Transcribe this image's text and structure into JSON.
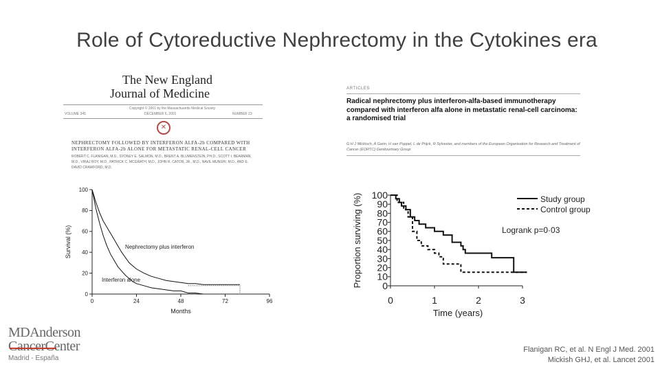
{
  "slide": {
    "title": "Role of Cytoreductive Nephrectomy in the Cytokines era",
    "references": [
      "Flanigan RC, et al. N Engl J Med. 2001",
      "Mickish GHJ, et al. Lancet 2001"
    ]
  },
  "nejm": {
    "masthead_line1": "The New England",
    "masthead_line2": "Journal of Medicine",
    "copyright": "Copyright © 2001 by the Massachusetts Medical Society",
    "volume": "VOLUME 345",
    "date": "DECEMBER 6, 2001",
    "number": "NUMBER 23",
    "article_title": "NEPHRECTOMY FOLLOWED BY INTERFERON ALFA-2b COMPARED WITH INTERFERON ALFA-2b ALONE FOR METASTATIC RENAL-CELL CANCER",
    "authors": "ROBERT C. FLANIGAN, M.D., SYDNEY E. SALMON, M.D., BRENT A. BLUMENSTEIN, PH.D., SCOTT I. BEARMAN, M.D., VIRAJ ROY, M.D., PATRICK C. MCGRATH, M.D., JOHN R. CATON, JR., M.D., NAVIL MUNSHI, M.D., AND E. DAVID CRAWFORD, M.D."
  },
  "lancet": {
    "section": "ARTICLES",
    "title": "Radical nephrectomy plus interferon-alfa-based immunotherapy compared with interferon alfa alone in metastatic renal-cell carcinoma: a randomised trial",
    "authors": "G H J Mickisch, A Garin, H van Poppel, L de Prijck, R Sylvester, and members of the European Organisation for Research and Treatment of Cancer (EORTC) Genitourinary Group"
  },
  "logo": {
    "line1": "MDAnderson",
    "line2": "CancerCenter",
    "line3": "Madrid - España"
  },
  "chart_data": [
    {
      "type": "line",
      "xlabel": "Months",
      "ylabel": "Survival (%)",
      "xlim": [
        0,
        96
      ],
      "ylim": [
        0,
        100
      ],
      "x_ticks": [
        0,
        24,
        48,
        72,
        96
      ],
      "y_ticks": [
        0,
        20,
        40,
        60,
        80,
        100
      ],
      "annotations": [
        "Nephrectomy plus interferon",
        "Interferon alone"
      ],
      "series": [
        {
          "name": "Nephrectomy plus interferon",
          "style": "solid",
          "points": [
            [
              0,
              100
            ],
            [
              2,
              88
            ],
            [
              4,
              78
            ],
            [
              6,
              70
            ],
            [
              8,
              64
            ],
            [
              10,
              58
            ],
            [
              12,
              52
            ],
            [
              14,
              46
            ],
            [
              16,
              40
            ],
            [
              18,
              35
            ],
            [
              20,
              30
            ],
            [
              22,
              27
            ],
            [
              24,
              24
            ],
            [
              28,
              20
            ],
            [
              32,
              17
            ],
            [
              36,
              15
            ],
            [
              40,
              13
            ],
            [
              44,
              12
            ],
            [
              48,
              11
            ],
            [
              52,
              10
            ],
            [
              56,
              10
            ],
            [
              60,
              9
            ],
            [
              64,
              9
            ],
            [
              68,
              9
            ],
            [
              72,
              9
            ],
            [
              76,
              9
            ],
            [
              80,
              9
            ]
          ]
        },
        {
          "name": "Interferon alone",
          "style": "solid",
          "points": [
            [
              0,
              100
            ],
            [
              2,
              82
            ],
            [
              4,
              68
            ],
            [
              6,
              56
            ],
            [
              8,
              46
            ],
            [
              10,
              38
            ],
            [
              12,
              32
            ],
            [
              14,
              26
            ],
            [
              16,
              22
            ],
            [
              18,
              18
            ],
            [
              20,
              15
            ],
            [
              22,
              12
            ],
            [
              24,
              10
            ],
            [
              28,
              8
            ],
            [
              32,
              6
            ],
            [
              36,
              5
            ],
            [
              40,
              4
            ],
            [
              44,
              3
            ],
            [
              48,
              3
            ],
            [
              52,
              1
            ],
            [
              56,
              1
            ],
            [
              60,
              0
            ]
          ]
        }
      ]
    },
    {
      "type": "line",
      "xlabel": "Time (years)",
      "ylabel": "Proportion surviving (%)",
      "xlim": [
        0,
        3
      ],
      "ylim": [
        0,
        100
      ],
      "x_ticks": [
        0,
        1,
        2,
        3
      ],
      "y_ticks": [
        0,
        10,
        20,
        30,
        40,
        50,
        60,
        70,
        80,
        90,
        100
      ],
      "annotation": "Logrank p=0·03",
      "legend_position": "top-right",
      "series": [
        {
          "name": "Study group",
          "style": "solid",
          "points": [
            [
              0,
              100
            ],
            [
              0.12,
              100
            ],
            [
              0.12,
              96
            ],
            [
              0.2,
              96
            ],
            [
              0.2,
              92
            ],
            [
              0.25,
              92
            ],
            [
              0.25,
              88
            ],
            [
              0.35,
              88
            ],
            [
              0.35,
              84
            ],
            [
              0.45,
              84
            ],
            [
              0.45,
              76
            ],
            [
              0.55,
              76
            ],
            [
              0.55,
              72
            ],
            [
              0.65,
              72
            ],
            [
              0.65,
              68
            ],
            [
              0.8,
              68
            ],
            [
              0.8,
              64
            ],
            [
              1.0,
              64
            ],
            [
              1.0,
              60
            ],
            [
              1.2,
              60
            ],
            [
              1.2,
              56
            ],
            [
              1.4,
              56
            ],
            [
              1.4,
              48
            ],
            [
              1.6,
              48
            ],
            [
              1.6,
              44
            ],
            [
              1.65,
              44
            ],
            [
              1.65,
              40
            ],
            [
              1.7,
              40
            ],
            [
              1.7,
              36
            ],
            [
              2.3,
              36
            ],
            [
              2.3,
              31
            ],
            [
              2.8,
              31
            ],
            [
              2.8,
              15
            ],
            [
              3.1,
              15
            ]
          ]
        },
        {
          "name": "Control group",
          "style": "dashed",
          "points": [
            [
              0,
              100
            ],
            [
              0.15,
              100
            ],
            [
              0.15,
              92
            ],
            [
              0.3,
              92
            ],
            [
              0.3,
              84
            ],
            [
              0.4,
              84
            ],
            [
              0.4,
              76
            ],
            [
              0.5,
              76
            ],
            [
              0.5,
              60
            ],
            [
              0.6,
              60
            ],
            [
              0.6,
              50
            ],
            [
              0.7,
              50
            ],
            [
              0.7,
              44
            ],
            [
              0.85,
              44
            ],
            [
              0.85,
              40
            ],
            [
              1.0,
              40
            ],
            [
              1.0,
              36
            ],
            [
              1.1,
              36
            ],
            [
              1.1,
              32
            ],
            [
              1.2,
              32
            ],
            [
              1.2,
              24
            ],
            [
              1.6,
              24
            ],
            [
              1.6,
              15
            ],
            [
              3.1,
              15
            ]
          ]
        }
      ]
    }
  ]
}
